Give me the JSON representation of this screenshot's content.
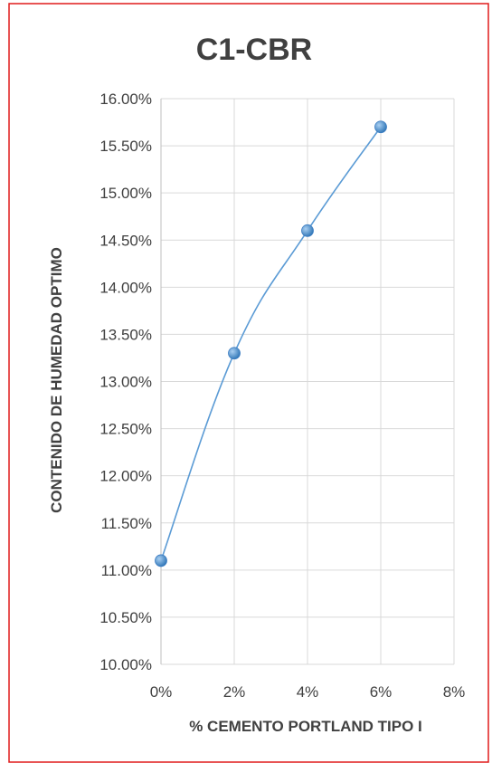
{
  "chart_data": {
    "type": "line",
    "title": "C1-CBR",
    "xlabel": "% CEMENTO PORTLAND TIPO I",
    "ylabel": "CONTENIDO DE HUMEDAD OPTIMO",
    "xlim": [
      0,
      0.08
    ],
    "ylim": [
      0.1,
      0.16
    ],
    "x_ticks": [
      "0%",
      "2%",
      "4%",
      "6%",
      "8%"
    ],
    "x_tick_values": [
      0,
      0.02,
      0.04,
      0.06,
      0.08
    ],
    "y_ticks": [
      "10.00%",
      "10.50%",
      "11.00%",
      "11.50%",
      "12.00%",
      "12.50%",
      "13.00%",
      "13.50%",
      "14.00%",
      "14.50%",
      "15.00%",
      "15.50%",
      "16.00%"
    ],
    "y_tick_values": [
      0.1,
      0.105,
      0.11,
      0.115,
      0.12,
      0.125,
      0.13,
      0.135,
      0.14,
      0.145,
      0.15,
      0.155,
      0.16
    ],
    "grid": true,
    "smooth": true,
    "series": [
      {
        "x": [
          0,
          0.02,
          0.04,
          0.06
        ],
        "y": [
          0.111,
          0.133,
          0.146,
          0.157
        ]
      }
    ],
    "colors": {
      "line": "#5B9BD5",
      "marker": "#4A8BD0",
      "border": "#E01B1B",
      "grid": "#D9D9D9",
      "axis": "#BFBFBF",
      "text": "#404040",
      "title": "#404040"
    }
  }
}
